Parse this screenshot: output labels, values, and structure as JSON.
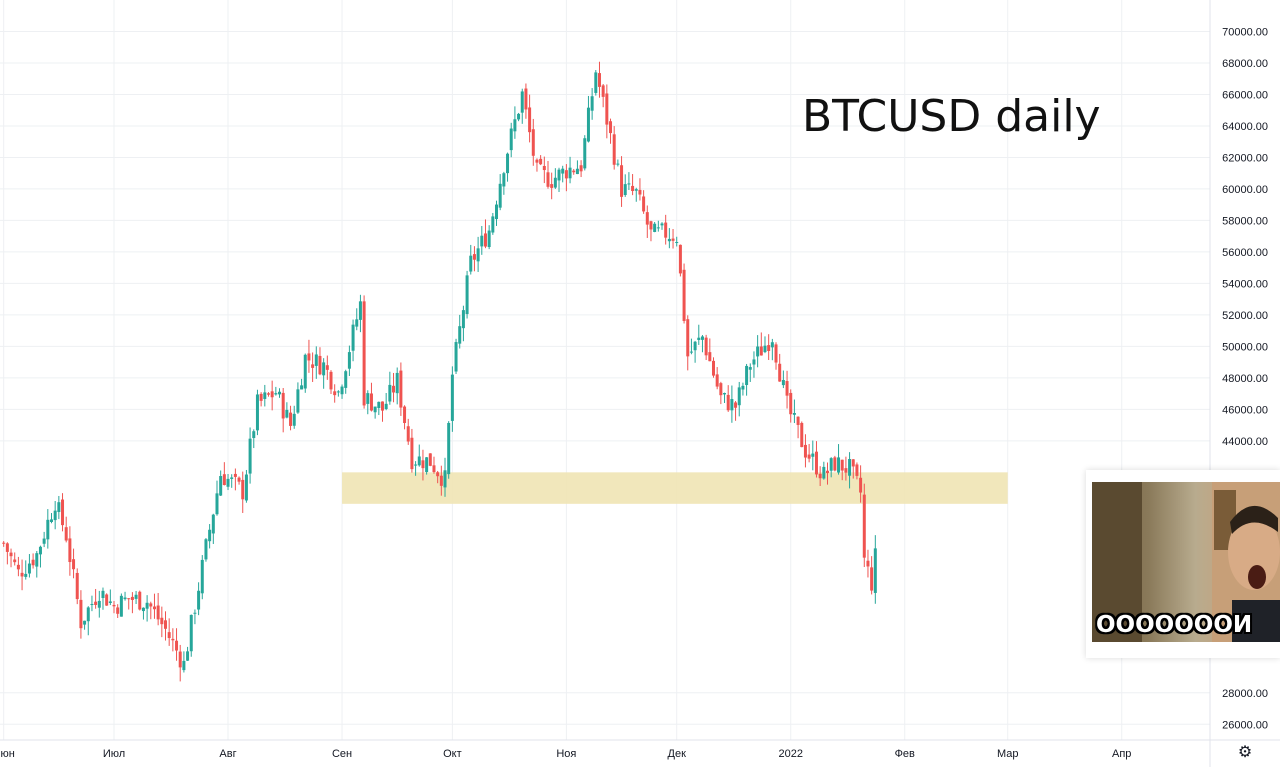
{
  "chart_data": {
    "type": "candlestick",
    "title": "BTCUSD daily",
    "y_axis": {
      "min": 25000,
      "max": 72000,
      "ticks": [
        26000,
        28000,
        44000,
        46000,
        48000,
        50000,
        52000,
        54000,
        56000,
        58000,
        60000,
        62000,
        64000,
        66000,
        68000,
        70000
      ],
      "tick_labels": [
        "26000.00",
        "28000.00",
        "44000.00",
        "46000.00",
        "48000.00",
        "50000.00",
        "52000.00",
        "54000.00",
        "56000.00",
        "58000.00",
        "60000.00",
        "62000.00",
        "64000.00",
        "66000.00",
        "68000.00",
        "70000.00"
      ]
    },
    "x_axis": {
      "start": "2021-05-31",
      "end": "2022-04-25",
      "ticks": [
        {
          "date": "2021-06-01",
          "label": "Июн"
        },
        {
          "date": "2021-07-01",
          "label": "Июл"
        },
        {
          "date": "2021-08-01",
          "label": "Авг"
        },
        {
          "date": "2021-09-01",
          "label": "Сен"
        },
        {
          "date": "2021-10-01",
          "label": "Окт"
        },
        {
          "date": "2021-11-01",
          "label": "Ноя"
        },
        {
          "date": "2021-12-01",
          "label": "Дек"
        },
        {
          "date": "2022-01-01",
          "label": "2022"
        },
        {
          "date": "2022-02-01",
          "label": "Фев"
        },
        {
          "date": "2022-03-01",
          "label": "Мар"
        },
        {
          "date": "2022-04-01",
          "label": "Апр"
        }
      ]
    },
    "grid": true,
    "zone": {
      "from": "2021-09-01",
      "to": "2022-03-01",
      "low": 40000,
      "high": 42000,
      "color": "#f0e4b4"
    },
    "colors": {
      "up": "#26a69a",
      "down": "#ef5350",
      "grid": "#eef0f3",
      "axis_text": "#131722"
    },
    "series": [
      {
        "date": "2021-06-01",
        "close": 37500
      },
      {
        "date": "2021-06-05",
        "close": 35600
      },
      {
        "date": "2021-06-10",
        "close": 36800
      },
      {
        "date": "2021-06-15",
        "close": 40200
      },
      {
        "date": "2021-06-18",
        "close": 38000
      },
      {
        "date": "2021-06-22",
        "close": 32500
      },
      {
        "date": "2021-06-27",
        "close": 34500
      },
      {
        "date": "2021-07-01",
        "close": 33500
      },
      {
        "date": "2021-07-05",
        "close": 34000
      },
      {
        "date": "2021-07-10",
        "close": 33800
      },
      {
        "date": "2021-07-15",
        "close": 32000
      },
      {
        "date": "2021-07-20",
        "close": 29800
      },
      {
        "date": "2021-07-22",
        "close": 32300
      },
      {
        "date": "2021-07-26",
        "close": 37200
      },
      {
        "date": "2021-07-30",
        "close": 41900
      },
      {
        "date": "2021-08-05",
        "close": 40800
      },
      {
        "date": "2021-08-09",
        "close": 46300
      },
      {
        "date": "2021-08-14",
        "close": 47100
      },
      {
        "date": "2021-08-18",
        "close": 45000
      },
      {
        "date": "2021-08-22",
        "close": 49300
      },
      {
        "date": "2021-08-27",
        "close": 48800
      },
      {
        "date": "2021-08-31",
        "close": 47100
      },
      {
        "date": "2021-09-06",
        "close": 52700
      },
      {
        "date": "2021-09-07",
        "close": 46800
      },
      {
        "date": "2021-09-12",
        "close": 46000
      },
      {
        "date": "2021-09-16",
        "close": 47800
      },
      {
        "date": "2021-09-20",
        "close": 42900
      },
      {
        "date": "2021-09-25",
        "close": 42700
      },
      {
        "date": "2021-09-29",
        "close": 41500
      },
      {
        "date": "2021-10-01",
        "close": 48200
      },
      {
        "date": "2021-10-06",
        "close": 55300
      },
      {
        "date": "2021-10-11",
        "close": 57400
      },
      {
        "date": "2021-10-15",
        "close": 61600
      },
      {
        "date": "2021-10-20",
        "close": 66000
      },
      {
        "date": "2021-10-24",
        "close": 61000
      },
      {
        "date": "2021-10-28",
        "close": 60600
      },
      {
        "date": "2021-11-01",
        "close": 61200
      },
      {
        "date": "2021-11-05",
        "close": 61500
      },
      {
        "date": "2021-11-09",
        "close": 67500
      },
      {
        "date": "2021-11-12",
        "close": 64400
      },
      {
        "date": "2021-11-16",
        "close": 60000
      },
      {
        "date": "2021-11-20",
        "close": 59700
      },
      {
        "date": "2021-11-24",
        "close": 57100
      },
      {
        "date": "2021-11-28",
        "close": 57200
      },
      {
        "date": "2021-12-01",
        "close": 57000
      },
      {
        "date": "2021-12-04",
        "close": 49400
      },
      {
        "date": "2021-12-08",
        "close": 50600
      },
      {
        "date": "2021-12-13",
        "close": 46700
      },
      {
        "date": "2021-12-17",
        "close": 46200
      },
      {
        "date": "2021-12-21",
        "close": 48900
      },
      {
        "date": "2021-12-27",
        "close": 50700
      },
      {
        "date": "2021-12-31",
        "close": 46200
      },
      {
        "date": "2022-01-05",
        "close": 43400
      },
      {
        "date": "2022-01-10",
        "close": 41800
      },
      {
        "date": "2022-01-13",
        "close": 42600
      },
      {
        "date": "2022-01-17",
        "close": 42200
      },
      {
        "date": "2022-01-20",
        "close": 40700
      },
      {
        "date": "2022-01-21",
        "close": 36400
      },
      {
        "date": "2022-01-23",
        "close": 35000
      },
      {
        "date": "2022-01-24",
        "close": 36600
      }
    ]
  },
  "meme": {
    "caption": "ООООООOИ"
  },
  "settings_icon": "gear-icon"
}
